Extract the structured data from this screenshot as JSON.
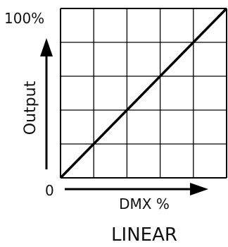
{
  "chart_data": {
    "type": "line",
    "title": "LINEAR",
    "xlabel": "DMX %",
    "ylabel": "Output",
    "y_max_label": "100%",
    "origin_label": "0",
    "xlim": [
      0,
      100
    ],
    "ylim": [
      0,
      100
    ],
    "grid": true,
    "grid_divisions": {
      "x": 5,
      "y": 5
    },
    "series": [
      {
        "x": [
          0,
          100
        ],
        "y": [
          0,
          100
        ]
      }
    ],
    "colors": {
      "line": "#000000",
      "grid": "#000000",
      "text": "#111111"
    }
  }
}
